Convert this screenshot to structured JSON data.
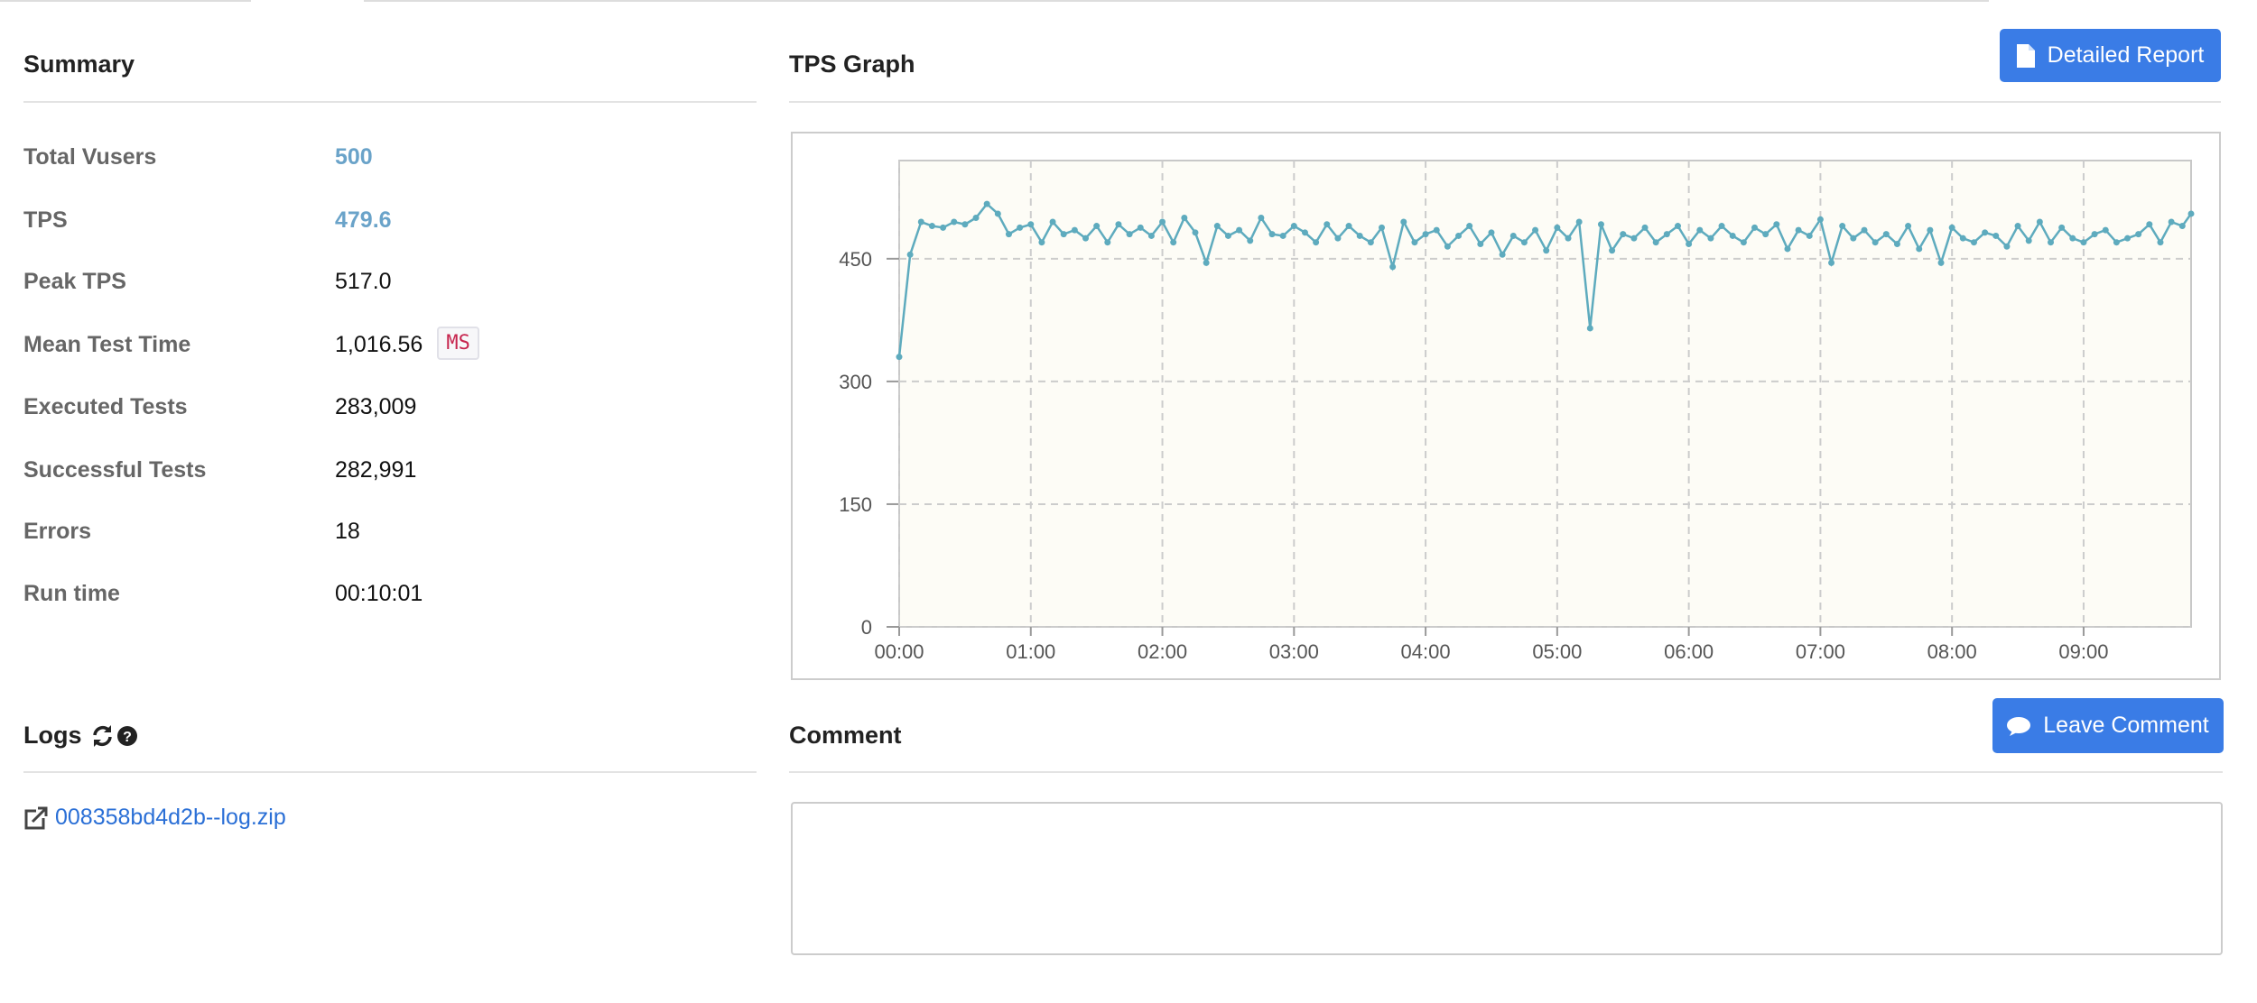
{
  "summary": {
    "title": "Summary",
    "rows": [
      {
        "label": "Total Vusers",
        "value": "500"
      },
      {
        "label": "TPS",
        "value": "479.6"
      },
      {
        "label": "Peak TPS",
        "value": "517.0"
      },
      {
        "label": "Mean Test Time",
        "value": "1,016.56",
        "unit": "MS"
      },
      {
        "label": "Executed Tests",
        "value": "283,009"
      },
      {
        "label": "Successful Tests",
        "value": "282,991"
      },
      {
        "label": "Errors",
        "value": "18"
      },
      {
        "label": "Run time",
        "value": "00:10:01"
      }
    ]
  },
  "tps_graph": {
    "title": "TPS Graph",
    "button": "Detailed Report",
    "chart_data": {
      "type": "line",
      "color": "#5eabbe",
      "grid": true,
      "xlim": [
        0,
        589
      ],
      "ylim": [
        0,
        570
      ],
      "xticks": [
        {
          "value": 0,
          "label": "00:00"
        },
        {
          "value": 60,
          "label": "01:00"
        },
        {
          "value": 120,
          "label": "02:00"
        },
        {
          "value": 180,
          "label": "03:00"
        },
        {
          "value": 240,
          "label": "04:00"
        },
        {
          "value": 300,
          "label": "05:00"
        },
        {
          "value": 360,
          "label": "06:00"
        },
        {
          "value": 420,
          "label": "07:00"
        },
        {
          "value": 480,
          "label": "08:00"
        },
        {
          "value": 540,
          "label": "09:00"
        }
      ],
      "yticks": [
        0,
        150,
        300,
        450
      ],
      "x": [
        0,
        5,
        10,
        15,
        20,
        25,
        30,
        35,
        40,
        45,
        50,
        55,
        60,
        65,
        70,
        75,
        80,
        85,
        90,
        95,
        100,
        105,
        110,
        115,
        120,
        125,
        130,
        135,
        140,
        145,
        150,
        155,
        160,
        165,
        170,
        175,
        180,
        185,
        190,
        195,
        200,
        205,
        210,
        215,
        220,
        225,
        230,
        235,
        240,
        245,
        250,
        255,
        260,
        265,
        270,
        275,
        280,
        285,
        290,
        295,
        300,
        305,
        310,
        315,
        320,
        325,
        330,
        335,
        340,
        345,
        350,
        355,
        360,
        365,
        370,
        375,
        380,
        385,
        390,
        395,
        400,
        405,
        410,
        415,
        420,
        425,
        430,
        435,
        440,
        445,
        450,
        455,
        460,
        465,
        470,
        475,
        480,
        485,
        490,
        495,
        500,
        505,
        510,
        515,
        520,
        525,
        530,
        535,
        540,
        545,
        550,
        555,
        560,
        565,
        570,
        575,
        580,
        585,
        589
      ],
      "values": [
        330,
        455,
        495,
        490,
        488,
        495,
        492,
        500,
        517,
        505,
        480,
        488,
        492,
        470,
        495,
        480,
        485,
        475,
        490,
        470,
        492,
        480,
        488,
        478,
        495,
        470,
        500,
        482,
        445,
        490,
        478,
        485,
        472,
        500,
        480,
        478,
        490,
        482,
        470,
        492,
        475,
        490,
        478,
        470,
        488,
        440,
        495,
        470,
        480,
        485,
        465,
        478,
        490,
        468,
        482,
        455,
        478,
        470,
        485,
        460,
        488,
        475,
        495,
        365,
        492,
        460,
        480,
        475,
        488,
        470,
        480,
        490,
        468,
        485,
        475,
        490,
        478,
        470,
        488,
        480,
        492,
        462,
        485,
        478,
        498,
        445,
        490,
        475,
        485,
        470,
        480,
        468,
        490,
        462,
        485,
        445,
        488,
        475,
        470,
        482,
        478,
        465,
        490,
        472,
        495,
        470,
        488,
        475,
        470,
        480,
        485,
        470,
        475,
        480,
        492,
        470,
        495,
        490,
        505
      ]
    }
  },
  "logs": {
    "title": "Logs",
    "files": [
      "008358bd4d2b--log.zip"
    ]
  },
  "comment": {
    "title": "Comment",
    "button": "Leave Comment"
  }
}
